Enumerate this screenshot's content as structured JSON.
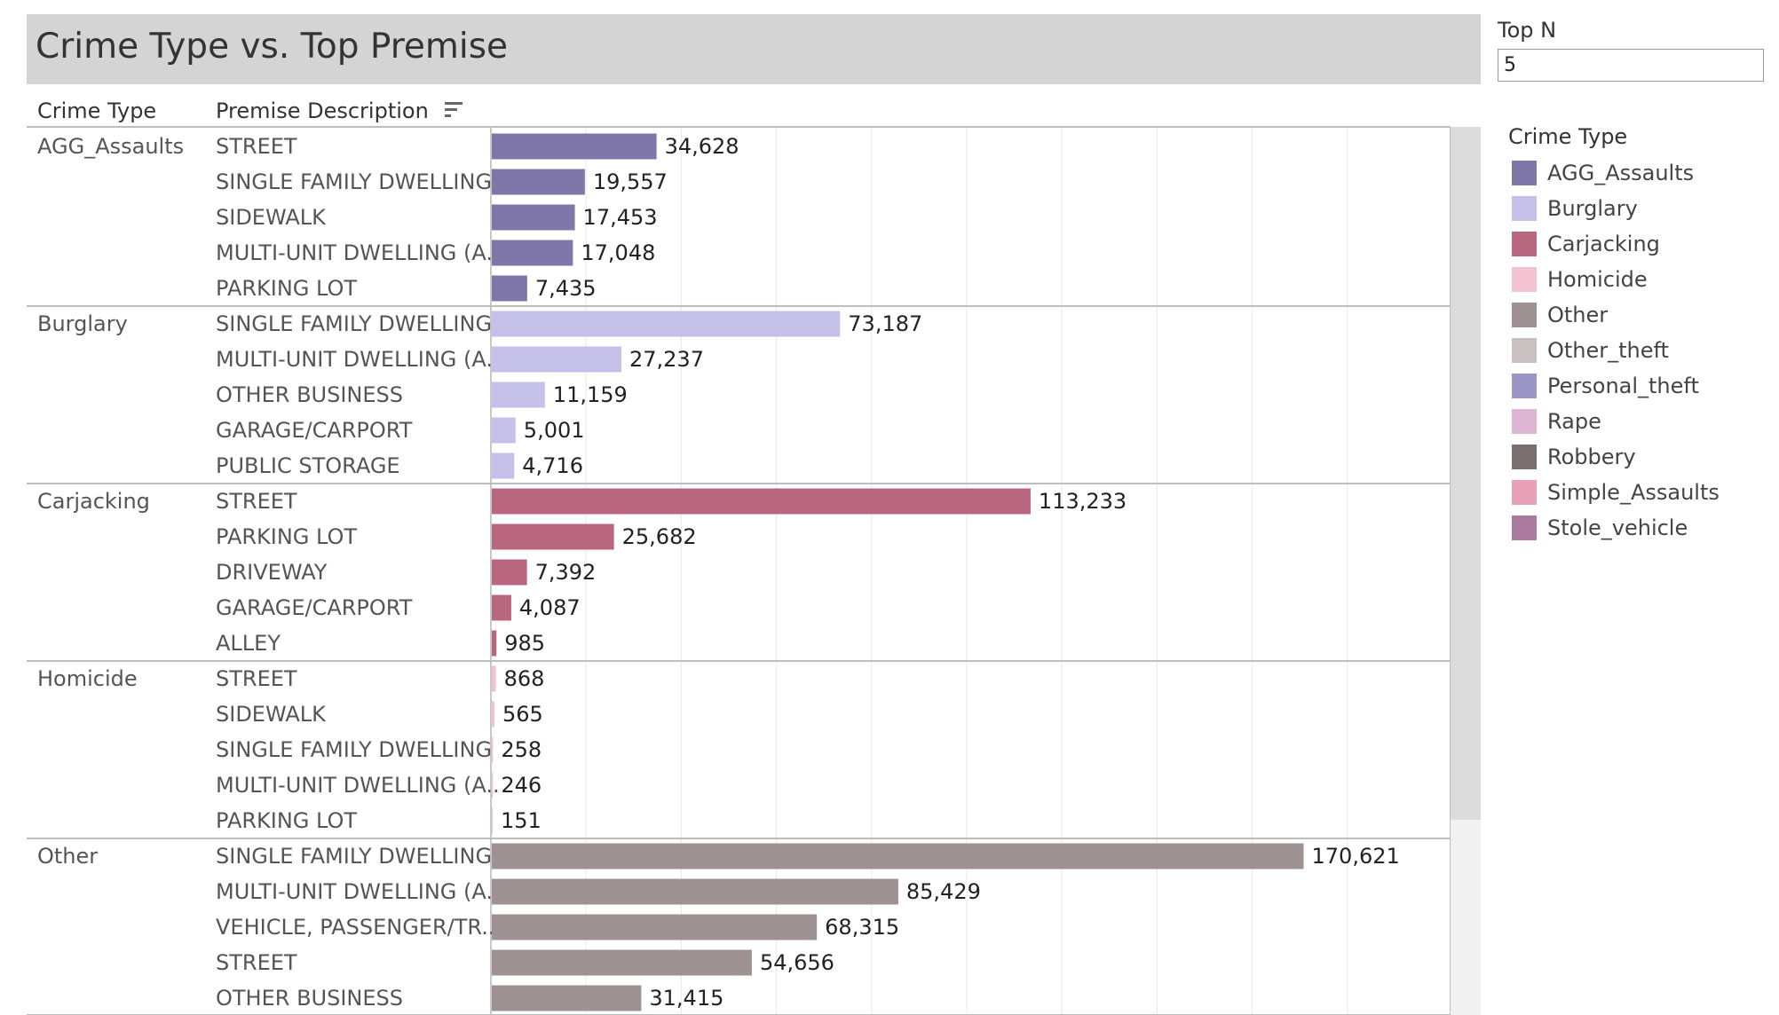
{
  "header": {
    "title": "Crime Type vs. Top Premise"
  },
  "parameter": {
    "label": "Top N",
    "value": "5"
  },
  "columns": {
    "crime_type": "Crime Type",
    "premise": "Premise Description"
  },
  "legend": {
    "title": "Crime Type",
    "items": [
      {
        "label": "AGG_Assaults",
        "color": "#7f76aa"
      },
      {
        "label": "Burglary",
        "color": "#c5c1ea"
      },
      {
        "label": "Carjacking",
        "color": "#b9677f"
      },
      {
        "label": "Homicide",
        "color": "#f4c3d2"
      },
      {
        "label": "Other",
        "color": "#9e9191"
      },
      {
        "label": "Other_theft",
        "color": "#c9c1c1"
      },
      {
        "label": "Personal_theft",
        "color": "#9a96c6"
      },
      {
        "label": "Rape",
        "color": "#dcb6d3"
      },
      {
        "label": "Robbery",
        "color": "#7a6f6f"
      },
      {
        "label": "Simple_Assaults",
        "color": "#e7a0b6"
      },
      {
        "label": "Stole_vehicle",
        "color": "#ab7a9f"
      }
    ]
  },
  "chart_data": {
    "type": "bar",
    "orientation": "horizontal",
    "title": "Crime Type vs. Top Premise",
    "xlim": [
      0,
      200000
    ],
    "grid": true,
    "groups": [
      {
        "crime_type": "AGG_Assaults",
        "color": "#7f76aa",
        "rows": [
          {
            "premise": "STREET",
            "value": 34628,
            "label": "34,628"
          },
          {
            "premise": "SINGLE FAMILY DWELLING",
            "value": 19557,
            "label": "19,557"
          },
          {
            "premise": "SIDEWALK",
            "value": 17453,
            "label": "17,453"
          },
          {
            "premise": "MULTI-UNIT DWELLING (A..",
            "value": 17048,
            "label": "17,048"
          },
          {
            "premise": "PARKING LOT",
            "value": 7435,
            "label": "7,435"
          }
        ]
      },
      {
        "crime_type": "Burglary",
        "color": "#c5c1ea",
        "rows": [
          {
            "premise": "SINGLE FAMILY DWELLING",
            "value": 73187,
            "label": "73,187"
          },
          {
            "premise": "MULTI-UNIT DWELLING (A..",
            "value": 27237,
            "label": "27,237"
          },
          {
            "premise": "OTHER BUSINESS",
            "value": 11159,
            "label": "11,159"
          },
          {
            "premise": "GARAGE/CARPORT",
            "value": 5001,
            "label": "5,001"
          },
          {
            "premise": "PUBLIC STORAGE",
            "value": 4716,
            "label": "4,716"
          }
        ]
      },
      {
        "crime_type": "Carjacking",
        "color": "#b9677f",
        "rows": [
          {
            "premise": "STREET",
            "value": 113233,
            "label": "113,233"
          },
          {
            "premise": "PARKING LOT",
            "value": 25682,
            "label": "25,682"
          },
          {
            "premise": "DRIVEWAY",
            "value": 7392,
            "label": "7,392"
          },
          {
            "premise": "GARAGE/CARPORT",
            "value": 4087,
            "label": "4,087"
          },
          {
            "premise": "ALLEY",
            "value": 985,
            "label": "985"
          }
        ]
      },
      {
        "crime_type": "Homicide",
        "color": "#f4c3d2",
        "rows": [
          {
            "premise": "STREET",
            "value": 868,
            "label": "868"
          },
          {
            "premise": "SIDEWALK",
            "value": 565,
            "label": "565"
          },
          {
            "premise": "SINGLE FAMILY DWELLING",
            "value": 258,
            "label": "258"
          },
          {
            "premise": "MULTI-UNIT DWELLING (A..",
            "value": 246,
            "label": "246"
          },
          {
            "premise": "PARKING LOT",
            "value": 151,
            "label": "151"
          }
        ]
      },
      {
        "crime_type": "Other",
        "color": "#9e9191",
        "rows": [
          {
            "premise": "SINGLE FAMILY DWELLING",
            "value": 170621,
            "label": "170,621"
          },
          {
            "premise": "MULTI-UNIT DWELLING (A..",
            "value": 85429,
            "label": "85,429"
          },
          {
            "premise": "VEHICLE, PASSENGER/TR..",
            "value": 68315,
            "label": "68,315"
          },
          {
            "premise": "STREET",
            "value": 54656,
            "label": "54,656"
          },
          {
            "premise": "OTHER BUSINESS",
            "value": 31415,
            "label": "31,415"
          }
        ]
      }
    ]
  }
}
